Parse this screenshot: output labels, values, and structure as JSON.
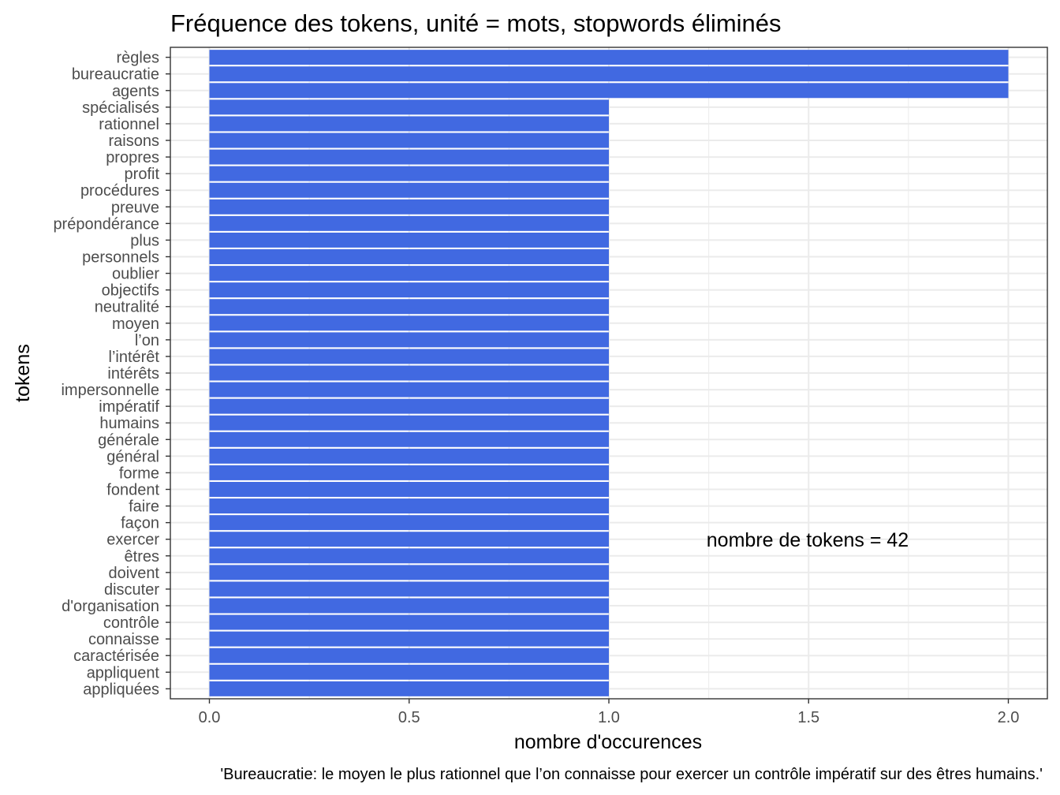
{
  "chart_data": {
    "type": "bar",
    "orientation": "horizontal",
    "title": "Fréquence des tokens, unité = mots, stopwords éliminés",
    "xlabel": "nombre d'occurences",
    "ylabel": "tokens",
    "caption": "'Bureaucratie: le moyen le plus rationnel que l’on connaisse pour exercer un contrôle impératif sur des êtres humains.'",
    "annotation": "nombre de tokens = 42",
    "xlim": [
      0,
      2
    ],
    "xticks": [
      "0.0",
      "0.5",
      "1.0",
      "1.5",
      "2.0"
    ],
    "xtick_values": [
      0,
      0.5,
      1,
      1.5,
      2
    ],
    "grid": true,
    "bar_color": "#4169E1",
    "categories": [
      "règles",
      "bureaucratie",
      "agents",
      "spécialisés",
      "rationnel",
      "raisons",
      "propres",
      "profit",
      "procédures",
      "preuve",
      "prépondérance",
      "plus",
      "personnels",
      "oublier",
      "objectifs",
      "neutralité",
      "moyen",
      "l’on",
      "l’intérêt",
      "intérêts",
      "impersonnelle",
      "impératif",
      "humains",
      "générale",
      "général",
      "forme",
      "fondent",
      "faire",
      "façon",
      "exercer",
      "êtres",
      "doivent",
      "discuter",
      "d'organisation",
      "contrôle",
      "connaisse",
      "caractérisée",
      "appliquent",
      "appliquées"
    ],
    "values": [
      2,
      2,
      2,
      1,
      1,
      1,
      1,
      1,
      1,
      1,
      1,
      1,
      1,
      1,
      1,
      1,
      1,
      1,
      1,
      1,
      1,
      1,
      1,
      1,
      1,
      1,
      1,
      1,
      1,
      1,
      1,
      1,
      1,
      1,
      1,
      1,
      1,
      1,
      1
    ]
  }
}
